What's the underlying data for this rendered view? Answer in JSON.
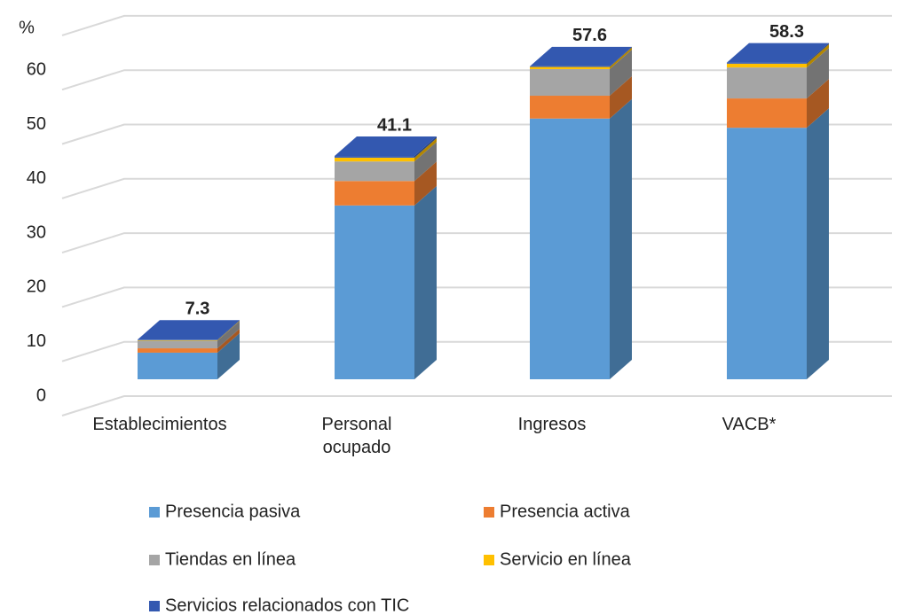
{
  "chart_data": {
    "type": "bar3d_stacked",
    "y_label": "%",
    "categories": [
      "Establecimientos",
      "Personal ocupado",
      "Ingresos",
      "VACB*"
    ],
    "totals": [
      7.3,
      41.1,
      57.6,
      58.3
    ],
    "series": [
      {
        "name": "Presencia pasiva",
        "color": "#5b9bd5",
        "values": [
          4.9,
          32.0,
          48.0,
          46.3
        ]
      },
      {
        "name": "Presencia activa",
        "color": "#ed7d31",
        "values": [
          0.8,
          4.5,
          4.2,
          5.4
        ]
      },
      {
        "name": "Tiendas en línea",
        "color": "#a5a5a5",
        "values": [
          1.4,
          3.6,
          4.9,
          5.7
        ]
      },
      {
        "name": "Servicio en línea",
        "color": "#ffc000",
        "values": [
          0.1,
          0.7,
          0.4,
          0.7
        ]
      },
      {
        "name": "Servicios relacionados con TIC",
        "color": "#3358b0",
        "values": [
          0.1,
          0.3,
          0.1,
          0.2
        ]
      }
    ],
    "ylim": [
      0,
      70
    ],
    "yticks": [
      0,
      10,
      20,
      30,
      40,
      50,
      60
    ],
    "grid": true
  }
}
